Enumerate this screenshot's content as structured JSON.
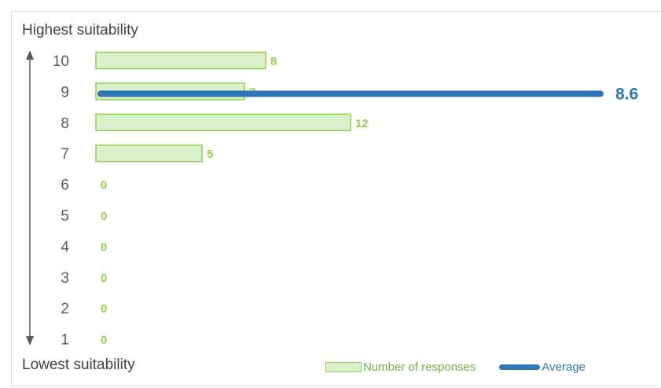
{
  "chart_data": {
    "type": "bar",
    "orientation": "horizontal",
    "top_label": "Highest suitability",
    "bottom_label": "Lowest suitability",
    "categories": [
      "10",
      "9",
      "8",
      "7",
      "6",
      "5",
      "4",
      "3",
      "2",
      "1"
    ],
    "series": [
      {
        "name": "Number of responses",
        "values": [
          8,
          7,
          12,
          5,
          0,
          0,
          0,
          0,
          0,
          0
        ],
        "color": "#92d050",
        "fill": "#d9f0cb"
      }
    ],
    "average": {
      "name": "Average",
      "value": 8.6,
      "label": "8.6",
      "color": "#2e75b6"
    },
    "legend_position": "bottom-right",
    "grid": false
  }
}
